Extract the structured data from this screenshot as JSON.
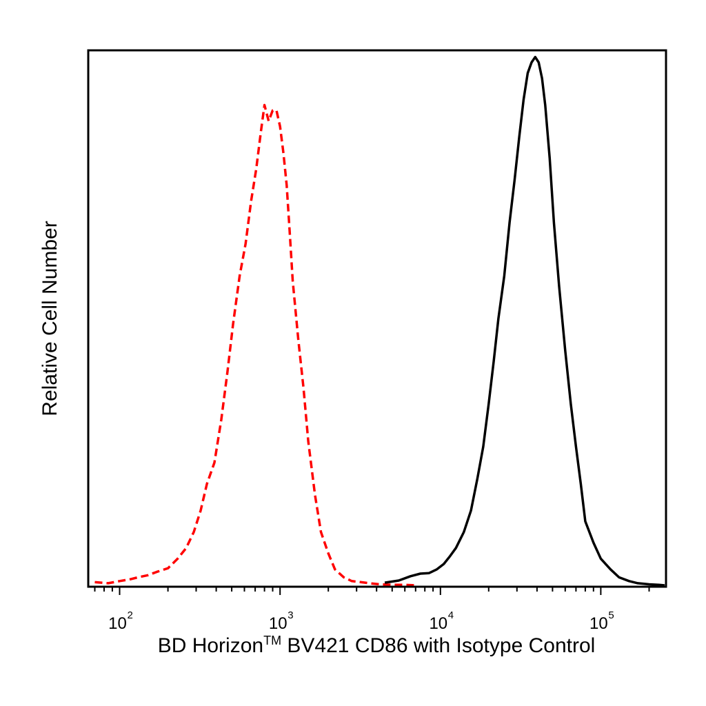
{
  "chart_data": {
    "type": "line",
    "title": "",
    "xlabel": "BD Horizon™ BV421 CD86 with Isotype Control",
    "xlabel_parts": {
      "before": "BD Horizon",
      "trademark": "TM",
      "after": " BV421 CD86 with Isotype Control"
    },
    "ylabel": "Relative Cell Number",
    "x_scale": "log",
    "xlim": [
      65,
      250000
    ],
    "ylim": [
      0,
      1.0
    ],
    "grid": false,
    "legend": "none",
    "y_ticks_shown": false,
    "x_ticks": [
      {
        "value": 100,
        "base": "10",
        "exp": "2"
      },
      {
        "value": 1000,
        "base": "10",
        "exp": "3"
      },
      {
        "value": 10000,
        "base": "10",
        "exp": "4"
      },
      {
        "value": 100000,
        "base": "10",
        "exp": "5"
      }
    ],
    "series": [
      {
        "style": "dashed",
        "color": "#ff0000",
        "x": [
          70,
          85,
          100,
          115,
          130,
          150,
          170,
          200,
          230,
          260,
          290,
          320,
          350,
          390,
          430,
          470,
          510,
          560,
          610,
          660,
          710,
          760,
          800,
          850,
          900,
          950,
          1000,
          1050,
          1100,
          1150,
          1200,
          1300,
          1400,
          1500,
          1650,
          1800,
          2000,
          2200,
          2500,
          2800,
          3200,
          3600,
          4200,
          5000,
          6000,
          7000
        ],
        "y": [
          0.006,
          0.004,
          0.008,
          0.011,
          0.015,
          0.019,
          0.025,
          0.032,
          0.05,
          0.07,
          0.1,
          0.14,
          0.19,
          0.23,
          0.31,
          0.4,
          0.49,
          0.58,
          0.64,
          0.72,
          0.78,
          0.85,
          0.9,
          0.87,
          0.89,
          0.89,
          0.86,
          0.81,
          0.75,
          0.66,
          0.57,
          0.46,
          0.37,
          0.27,
          0.17,
          0.1,
          0.06,
          0.03,
          0.015,
          0.008,
          0.006,
          0.004,
          0.002,
          0.001,
          0.001,
          0.0
        ]
      },
      {
        "style": "solid",
        "color": "#000000",
        "x": [
          4500,
          5500,
          6500,
          7500,
          8500,
          9500,
          10500,
          11500,
          12500,
          14000,
          15500,
          17000,
          18500,
          20000,
          21500,
          23000,
          25000,
          27000,
          29000,
          31000,
          33000,
          35000,
          37000,
          39000,
          41000,
          43000,
          45000,
          48000,
          51000,
          55000,
          60000,
          65000,
          70000,
          75000,
          80000,
          90000,
          100000,
          115000,
          130000,
          150000,
          170000,
          200000,
          230000,
          250000
        ],
        "y": [
          0.005,
          0.009,
          0.017,
          0.022,
          0.023,
          0.03,
          0.04,
          0.055,
          0.07,
          0.1,
          0.14,
          0.2,
          0.26,
          0.34,
          0.42,
          0.5,
          0.58,
          0.68,
          0.76,
          0.84,
          0.91,
          0.96,
          0.98,
          0.99,
          0.98,
          0.95,
          0.9,
          0.8,
          0.68,
          0.56,
          0.44,
          0.34,
          0.26,
          0.19,
          0.12,
          0.08,
          0.05,
          0.03,
          0.015,
          0.008,
          0.004,
          0.002,
          0.001,
          0.0
        ]
      }
    ]
  }
}
